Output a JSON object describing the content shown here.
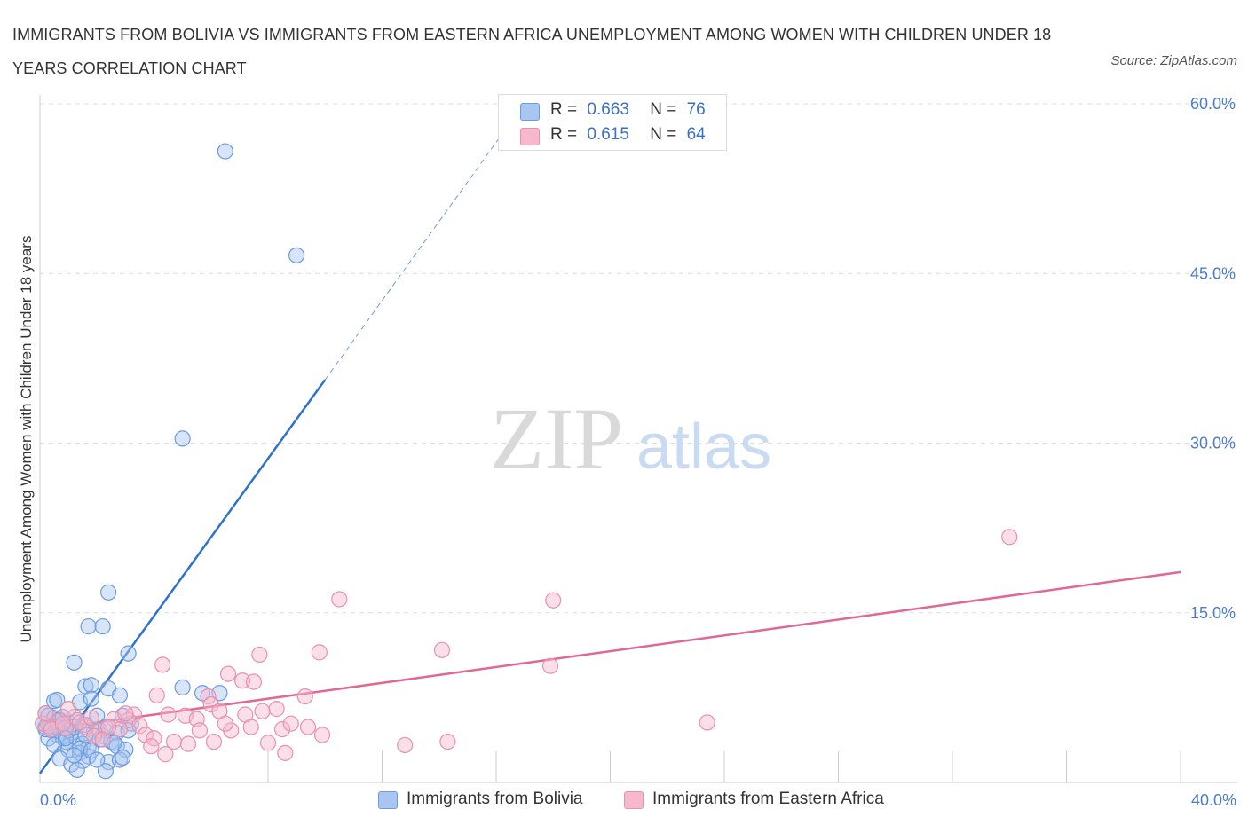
{
  "header": {
    "title": "IMMIGRANTS FROM BOLIVIA VS IMMIGRANTS FROM EASTERN AFRICA UNEMPLOYMENT AMONG WOMEN WITH CHILDREN UNDER 18 YEARS CORRELATION CHART",
    "source": "Source: ZipAtlas.com"
  },
  "watermark": {
    "zip": "ZIP",
    "atlas": "atlas"
  },
  "legend_top": {
    "rows": [
      {
        "r_label": "R =",
        "r_value": "0.663",
        "n_label": "N =",
        "n_value": "76",
        "color": "#a9c6f0"
      },
      {
        "r_label": "R =",
        "r_value": "0.615",
        "n_label": "N =",
        "n_value": "64",
        "color": "#f5b8cc"
      }
    ]
  },
  "chart_data": {
    "type": "scatter",
    "title": "IMMIGRANTS FROM BOLIVIA VS IMMIGRANTS FROM EASTERN AFRICA UNEMPLOYMENT AMONG WOMEN WITH CHILDREN UNDER 18 YEARS CORRELATION CHART",
    "xlabel": "",
    "ylabel": "Unemployment Among Women with Children Under 18 years",
    "xlim": [
      0,
      40
    ],
    "ylim": [
      0,
      60
    ],
    "x_ticks": [
      0,
      40
    ],
    "x_tick_labels": [
      "0.0%",
      "40.0%"
    ],
    "y_ticks": [
      15,
      30,
      45,
      60
    ],
    "y_tick_labels": [
      "15.0%",
      "30.0%",
      "45.0%",
      "60.0%"
    ],
    "grid": true,
    "legend_placement": "bottom",
    "series": [
      {
        "name": "Immigrants from Bolivia",
        "color": "#a9c6f0",
        "stroke": "#6a9be0",
        "line_color": "#2f72cc",
        "trend": {
          "x0": 0.0,
          "y0": 0.8,
          "x1": 10.0,
          "y1": 35.6,
          "dash_x1": 16.4,
          "dash_y1": 58.0
        },
        "points": [
          [
            6.5,
            55.8
          ],
          [
            9.0,
            46.6
          ],
          [
            5.0,
            30.4
          ],
          [
            2.4,
            16.8
          ],
          [
            1.7,
            13.8
          ],
          [
            2.2,
            13.8
          ],
          [
            3.1,
            11.4
          ],
          [
            1.2,
            10.6
          ],
          [
            1.6,
            8.5
          ],
          [
            1.8,
            8.6
          ],
          [
            2.4,
            8.3
          ],
          [
            2.8,
            7.7
          ],
          [
            5.0,
            8.4
          ],
          [
            5.7,
            7.9
          ],
          [
            6.3,
            7.9
          ],
          [
            0.5,
            7.2
          ],
          [
            0.6,
            7.3
          ],
          [
            1.4,
            7.1
          ],
          [
            1.8,
            7.4
          ],
          [
            0.2,
            6.1
          ],
          [
            0.3,
            5.9
          ],
          [
            0.5,
            5.7
          ],
          [
            0.7,
            5.5
          ],
          [
            1.0,
            5.3
          ],
          [
            1.3,
            5.5
          ],
          [
            1.6,
            5.1
          ],
          [
            2.0,
            5.9
          ],
          [
            2.7,
            4.4
          ],
          [
            2.9,
            5.9
          ],
          [
            0.1,
            5.2
          ],
          [
            0.2,
            4.9
          ],
          [
            0.4,
            4.6
          ],
          [
            0.6,
            4.2
          ],
          [
            0.8,
            4.0
          ],
          [
            0.9,
            3.6
          ],
          [
            1.1,
            4.4
          ],
          [
            1.3,
            3.9
          ],
          [
            1.5,
            3.4
          ],
          [
            1.7,
            3.1
          ],
          [
            2.0,
            4.6
          ],
          [
            2.2,
            4.1
          ],
          [
            2.5,
            3.6
          ],
          [
            2.7,
            3.2
          ],
          [
            3.0,
            2.9
          ],
          [
            1.0,
            2.9
          ],
          [
            1.4,
            2.6
          ],
          [
            1.7,
            2.3
          ],
          [
            0.7,
            2.1
          ],
          [
            1.1,
            1.6
          ],
          [
            1.5,
            1.9
          ],
          [
            2.4,
            1.8
          ],
          [
            2.8,
            2.0
          ],
          [
            2.9,
            2.2
          ],
          [
            2.3,
            1.0
          ],
          [
            1.3,
            1.1
          ],
          [
            0.3,
            3.9
          ],
          [
            0.4,
            5.0
          ],
          [
            0.9,
            4.8
          ],
          [
            1.2,
            4.9
          ],
          [
            1.9,
            4.5
          ],
          [
            2.1,
            3.8
          ],
          [
            0.8,
            5.8
          ],
          [
            1.0,
            4.6
          ],
          [
            1.4,
            3.0
          ],
          [
            0.6,
            4.9
          ],
          [
            2.6,
            3.5
          ],
          [
            3.2,
            5.2
          ],
          [
            0.2,
            4.7
          ],
          [
            1.8,
            2.8
          ],
          [
            2.3,
            4.9
          ],
          [
            0.9,
            3.9
          ],
          [
            1.6,
            4.2
          ],
          [
            0.5,
            3.3
          ],
          [
            1.2,
            2.4
          ],
          [
            2.0,
            2.0
          ],
          [
            3.1,
            4.6
          ]
        ]
      },
      {
        "name": "Immigrants from Eastern Africa",
        "color": "#f5b8cc",
        "stroke": "#e890ad",
        "line_color": "#e06897",
        "trend": {
          "x0": 0.0,
          "y0": 4.6,
          "x1": 40.0,
          "y1": 18.6
        },
        "points": [
          [
            34.0,
            21.7
          ],
          [
            18.0,
            16.1
          ],
          [
            10.5,
            16.2
          ],
          [
            14.1,
            11.7
          ],
          [
            9.8,
            11.5
          ],
          [
            7.7,
            11.3
          ],
          [
            17.9,
            10.3
          ],
          [
            4.3,
            10.4
          ],
          [
            6.6,
            9.6
          ],
          [
            7.1,
            9.0
          ],
          [
            7.5,
            8.9
          ],
          [
            4.1,
            7.7
          ],
          [
            9.3,
            7.6
          ],
          [
            5.9,
            7.6
          ],
          [
            6.0,
            6.9
          ],
          [
            6.3,
            6.3
          ],
          [
            7.8,
            6.3
          ],
          [
            8.3,
            6.5
          ],
          [
            4.5,
            6.0
          ],
          [
            5.1,
            5.9
          ],
          [
            5.5,
            5.6
          ],
          [
            3.3,
            6.0
          ],
          [
            3.1,
            5.5
          ],
          [
            2.6,
            5.6
          ],
          [
            1.2,
            5.8
          ],
          [
            0.6,
            5.4
          ],
          [
            0.3,
            5.0
          ],
          [
            0.1,
            5.2
          ],
          [
            0.2,
            6.1
          ],
          [
            0.9,
            4.8
          ],
          [
            1.6,
            4.9
          ],
          [
            2.1,
            4.6
          ],
          [
            2.8,
            4.7
          ],
          [
            3.5,
            5.0
          ],
          [
            3.7,
            4.2
          ],
          [
            4.0,
            3.9
          ],
          [
            4.7,
            3.6
          ],
          [
            5.2,
            3.4
          ],
          [
            6.1,
            3.6
          ],
          [
            6.7,
            4.6
          ],
          [
            7.4,
            4.9
          ],
          [
            8.0,
            3.5
          ],
          [
            8.5,
            4.7
          ],
          [
            8.8,
            5.2
          ],
          [
            9.4,
            4.9
          ],
          [
            9.9,
            4.2
          ],
          [
            3.9,
            3.2
          ],
          [
            4.4,
            2.5
          ],
          [
            8.6,
            2.6
          ],
          [
            12.8,
            3.3
          ],
          [
            14.3,
            3.6
          ],
          [
            23.4,
            5.3
          ],
          [
            1.0,
            6.5
          ],
          [
            1.9,
            4.1
          ],
          [
            2.4,
            4.9
          ],
          [
            3.0,
            6.1
          ],
          [
            0.4,
            4.7
          ],
          [
            1.4,
            5.3
          ],
          [
            2.2,
            3.8
          ],
          [
            5.6,
            4.6
          ],
          [
            6.5,
            5.2
          ],
          [
            7.2,
            6.0
          ],
          [
            0.8,
            5.2
          ],
          [
            1.8,
            5.7
          ]
        ]
      }
    ]
  }
}
